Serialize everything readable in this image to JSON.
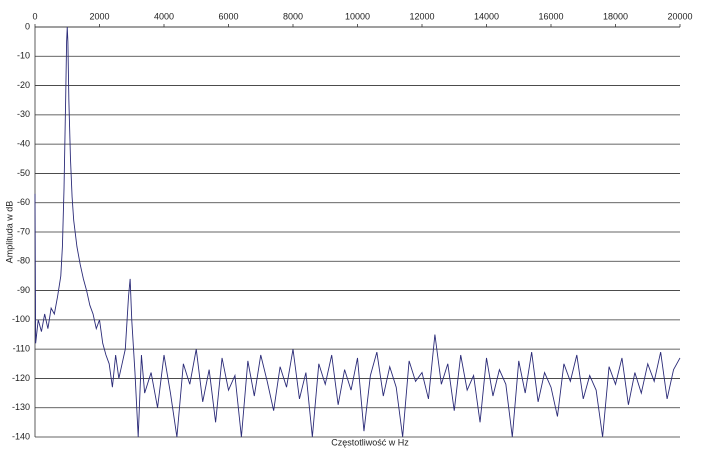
{
  "chart_data": {
    "type": "line",
    "xlabel": "Częstotliwość w Hz",
    "ylabel": "Amplituda w dB",
    "xlim": [
      0,
      20000
    ],
    "xticks": [
      0,
      2000,
      4000,
      6000,
      8000,
      10000,
      12000,
      14000,
      16000,
      18000,
      20000
    ],
    "ylim": [
      -140,
      0
    ],
    "yticks": [
      0,
      -10,
      -20,
      -30,
      -40,
      -50,
      -60,
      -70,
      -80,
      -90,
      -100,
      -110,
      -120,
      -130,
      -140
    ],
    "grid": true,
    "series": [
      {
        "color": "#2b2b78",
        "x": [
          0,
          20,
          100,
          200,
          300,
          400,
          500,
          600,
          700,
          800,
          850,
          900,
          950,
          980,
          1000,
          1020,
          1050,
          1100,
          1150,
          1200,
          1300,
          1400,
          1500,
          1600,
          1700,
          1800,
          1900,
          2000,
          2100,
          2200,
          2300,
          2400,
          2500,
          2600,
          2700,
          2800,
          2900,
          2950,
          3000,
          3100,
          3200,
          3300,
          3400,
          3600,
          3800,
          4000,
          4200,
          4400,
          4600,
          4800,
          5000,
          5200,
          5400,
          5600,
          5800,
          6000,
          6200,
          6400,
          6600,
          6800,
          7000,
          7200,
          7400,
          7600,
          7800,
          8000,
          8200,
          8400,
          8600,
          8800,
          9000,
          9200,
          9400,
          9600,
          9800,
          10000,
          10200,
          10400,
          10600,
          10800,
          11000,
          11200,
          11400,
          11600,
          11800,
          12000,
          12200,
          12400,
          12600,
          12800,
          13000,
          13200,
          13400,
          13600,
          13800,
          14000,
          14200,
          14400,
          14600,
          14800,
          15000,
          15200,
          15400,
          15600,
          15800,
          16000,
          16200,
          16400,
          16600,
          16800,
          17000,
          17200,
          17400,
          17600,
          17800,
          18000,
          18200,
          18400,
          18600,
          18800,
          19000,
          19200,
          19400,
          19600,
          19800,
          20000
        ],
        "values": [
          -57,
          -108,
          -100,
          -104,
          -98,
          -103,
          -96,
          -98,
          -92,
          -85,
          -75,
          -55,
          -25,
          -5,
          0,
          -5,
          -25,
          -45,
          -58,
          -66,
          -75,
          -81,
          -86,
          -90,
          -95,
          -98,
          -103,
          -100,
          -108,
          -112,
          -115,
          -123,
          -112,
          -120,
          -115,
          -110,
          -92,
          -86,
          -100,
          -118,
          -140,
          -112,
          -125,
          -118,
          -130,
          -112,
          -125,
          -140,
          -115,
          -122,
          -110,
          -128,
          -117,
          -135,
          -113,
          -124,
          -119,
          -140,
          -114,
          -126,
          -112,
          -121,
          -131,
          -116,
          -123,
          -110,
          -127,
          -118,
          -140,
          -115,
          -122,
          -112,
          -129,
          -117,
          -124,
          -113,
          -138,
          -119,
          -111,
          -126,
          -116,
          -123,
          -140,
          -114,
          -121,
          -118,
          -127,
          -105,
          -122,
          -115,
          -131,
          -112,
          -124,
          -119,
          -135,
          -113,
          -126,
          -117,
          -122,
          -140,
          -114,
          -125,
          -111,
          -128,
          -118,
          -123,
          -133,
          -115,
          -121,
          -112,
          -127,
          -119,
          -124,
          -140,
          -116,
          -122,
          -113,
          -129,
          -118,
          -125,
          -115,
          -121,
          -111,
          -127,
          -117,
          -113
        ]
      }
    ]
  }
}
